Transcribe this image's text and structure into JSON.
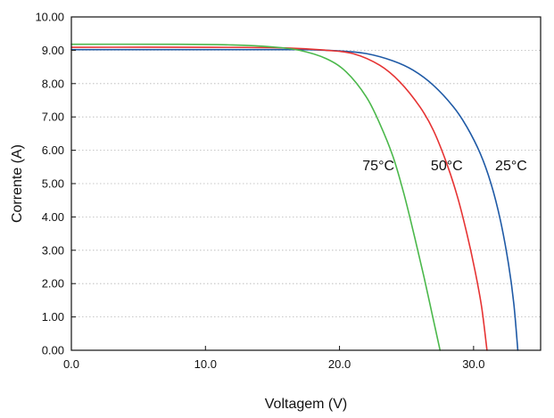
{
  "chart_data": {
    "type": "line",
    "title": "",
    "xlabel": "Voltagem (V)",
    "ylabel": "Corrente (A)",
    "xlim": [
      0,
      35
    ],
    "ylim": [
      0,
      10
    ],
    "x_tick_values": [
      0,
      10,
      20,
      30
    ],
    "x_tick_labels": [
      "0.0",
      "10.0",
      "20.0",
      "30.0"
    ],
    "y_tick_values": [
      0,
      1,
      2,
      3,
      4,
      5,
      6,
      7,
      8,
      9,
      10
    ],
    "y_tick_labels": [
      "0.00",
      "1.00",
      "2.00",
      "3.00",
      "4.00",
      "5.00",
      "6.00",
      "7.00",
      "8.00",
      "9.00",
      "10.00"
    ],
    "grid": "horizontal dotted",
    "legend": "none",
    "series": [
      {
        "color": "#1f5aa6",
        "points": [
          [
            0,
            9.02
          ],
          [
            10,
            9.02
          ],
          [
            17,
            9.02
          ],
          [
            20,
            8.98
          ],
          [
            22,
            8.9
          ],
          [
            24,
            8.68
          ],
          [
            25.5,
            8.4
          ],
          [
            27,
            7.95
          ],
          [
            28.5,
            7.3
          ],
          [
            29.5,
            6.7
          ],
          [
            30.5,
            5.9
          ],
          [
            31.3,
            5.0
          ],
          [
            32.0,
            3.9
          ],
          [
            32.6,
            2.6
          ],
          [
            33.0,
            1.4
          ],
          [
            33.3,
            0.0
          ]
        ]
      },
      {
        "color": "#e63333",
        "points": [
          [
            0,
            9.09
          ],
          [
            10,
            9.09
          ],
          [
            16,
            9.07
          ],
          [
            19,
            9.0
          ],
          [
            21,
            8.9
          ],
          [
            23,
            8.55
          ],
          [
            24.5,
            8.05
          ],
          [
            26,
            7.3
          ],
          [
            27,
            6.6
          ],
          [
            28,
            5.6
          ],
          [
            28.8,
            4.6
          ],
          [
            29.5,
            3.5
          ],
          [
            30.1,
            2.4
          ],
          [
            30.6,
            1.3
          ],
          [
            31.0,
            0.0
          ]
        ]
      },
      {
        "color": "#4bb84b",
        "points": [
          [
            0,
            9.18
          ],
          [
            8,
            9.18
          ],
          [
            12,
            9.16
          ],
          [
            15,
            9.1
          ],
          [
            17,
            9.0
          ],
          [
            19,
            8.75
          ],
          [
            20.5,
            8.35
          ],
          [
            22,
            7.6
          ],
          [
            23,
            6.8
          ],
          [
            24,
            5.8
          ],
          [
            24.8,
            4.7
          ],
          [
            25.6,
            3.4
          ],
          [
            26.3,
            2.2
          ],
          [
            26.9,
            1.1
          ],
          [
            27.5,
            0.0
          ]
        ]
      }
    ],
    "annotations": [
      {
        "text": "75°C",
        "x": 22.9,
        "y": 5.4
      },
      {
        "text": "50°C",
        "x": 28.0,
        "y": 5.4
      },
      {
        "text": "25°C",
        "x": 32.8,
        "y": 5.4
      }
    ]
  }
}
